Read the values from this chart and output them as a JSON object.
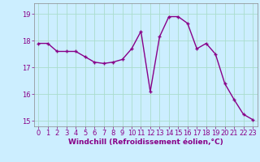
{
  "x": [
    0,
    1,
    2,
    3,
    4,
    5,
    6,
    7,
    8,
    9,
    10,
    11,
    12,
    13,
    14,
    15,
    16,
    17,
    18,
    19,
    20,
    21,
    22,
    23
  ],
  "y": [
    17.9,
    17.9,
    17.6,
    17.6,
    17.6,
    17.4,
    17.2,
    17.15,
    17.2,
    17.3,
    17.7,
    18.35,
    16.1,
    18.15,
    18.9,
    18.9,
    18.65,
    17.7,
    17.9,
    17.5,
    16.4,
    15.8,
    15.25,
    15.05
  ],
  "line_color": "#880088",
  "marker": "+",
  "markersize": 3.5,
  "linewidth": 1.0,
  "bg_color": "#cceeff",
  "grid_color": "#aaddcc",
  "xlabel": "Windchill (Refroidissement éolien,°C)",
  "xlabel_fontsize": 6.5,
  "xlabel_color": "#880088",
  "tick_color": "#880088",
  "ylim": [
    14.8,
    19.4
  ],
  "xlim": [
    -0.5,
    23.5
  ],
  "yticks": [
    15,
    16,
    17,
    18,
    19
  ],
  "xticks": [
    0,
    1,
    2,
    3,
    4,
    5,
    6,
    7,
    8,
    9,
    10,
    11,
    12,
    13,
    14,
    15,
    16,
    17,
    18,
    19,
    20,
    21,
    22,
    23
  ],
  "tick_fontsize": 6.0
}
